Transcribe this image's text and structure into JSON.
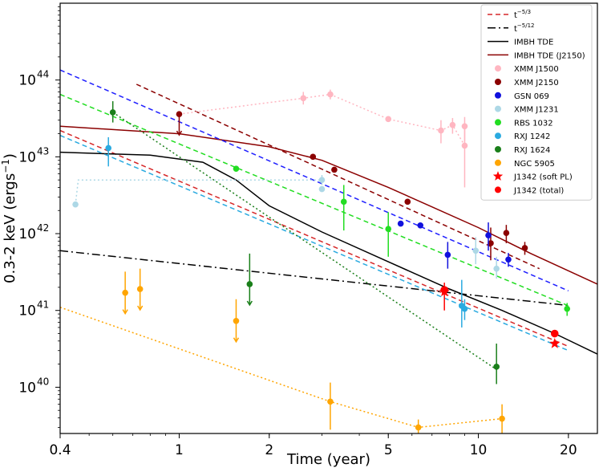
{
  "chart_data": {
    "type": "scatter",
    "xlabel": "Time (year)",
    "ylabel": "0.3-2 keV (ergs",
    "ylabel_sup": "−1",
    "ylabel_close": ")",
    "xscale": "log",
    "yscale": "log",
    "xlim": [
      0.4,
      25
    ],
    "ylim": [
      2.5e+39,
      1e+45
    ],
    "x_ticks": [
      {
        "v": 0.4,
        "label": "0.4"
      },
      {
        "v": 1,
        "label": "1"
      },
      {
        "v": 2,
        "label": "2"
      },
      {
        "v": 5,
        "label": "5"
      },
      {
        "v": 10,
        "label": "10"
      },
      {
        "v": 20,
        "label": "20"
      }
    ],
    "y_ticks": [
      {
        "v": 1e+40,
        "base": "10",
        "exp": "40"
      },
      {
        "v": 1e+41,
        "base": "10",
        "exp": "41"
      },
      {
        "v": 1e+42,
        "base": "10",
        "exp": "42"
      },
      {
        "v": 1e+43,
        "base": "10",
        "exp": "43"
      },
      {
        "v": 1e+44,
        "base": "10",
        "exp": "44"
      }
    ],
    "legend_position": "top-right",
    "lines": [
      {
        "name": "t",
        "sup": "−5/3",
        "color": "#d62728",
        "dash": "6,4",
        "points": [
          [
            0.4,
            2.2e+43
          ],
          [
            20,
            3.4e+40
          ]
        ]
      },
      {
        "name": "t",
        "sup": "−5/12",
        "color": "#000000",
        "dash": "10,4,2,4",
        "points": [
          [
            0.4,
            6e+41
          ],
          [
            20,
            1.16e+41
          ]
        ]
      },
      {
        "name": "IMBH TDE",
        "color": "#000000",
        "dash": "",
        "points": [
          [
            0.4,
            1.15e+43
          ],
          [
            0.8,
            1.05e+43
          ],
          [
            1.2,
            8.5e+42
          ],
          [
            1.55,
            5e+42
          ],
          [
            2,
            2.3e+42
          ],
          [
            3,
            1.05e+42
          ],
          [
            5,
            4.3e+41
          ],
          [
            8,
            1.9e+41
          ],
          [
            12,
            1e+41
          ],
          [
            18,
            5e+40
          ],
          [
            25,
            2.7e+40
          ]
        ]
      },
      {
        "name": "IMBH TDE (J2150)",
        "color": "#8b0000",
        "dash": "",
        "points": [
          [
            0.4,
            2.5e+43
          ],
          [
            1,
            2e+43
          ],
          [
            2,
            1.35e+43
          ],
          [
            3,
            9e+42
          ],
          [
            5,
            4e+42
          ],
          [
            10,
            1.2e+42
          ],
          [
            15,
            5.5e+41
          ],
          [
            25,
            2.2e+41
          ]
        ]
      },
      {
        "name": "",
        "color": "#8b0000",
        "dash": "6,4",
        "points": [
          [
            0.72,
            8.8e+43
          ],
          [
            16,
            3.5e+41
          ]
        ]
      },
      {
        "name": "",
        "color": "#1f1fff",
        "dash": "6,4",
        "points": [
          [
            0.4,
            1.35e+44
          ],
          [
            20,
            1.8e+41
          ]
        ]
      },
      {
        "name": "",
        "color": "#22dd22",
        "dash": "6,4",
        "points": [
          [
            0.4,
            6.5e+43
          ],
          [
            20,
            1.15e+41
          ]
        ]
      },
      {
        "name": "",
        "color": "#2aaae0",
        "dash": "6,4",
        "points": [
          [
            0.4,
            1.9e+43
          ],
          [
            20,
            3e+40
          ]
        ]
      },
      {
        "name": "",
        "color": "#1a7f1a",
        "dash": "2,3",
        "points": [
          [
            0.6,
            3.8e+43
          ],
          [
            11.5,
            1.7e+40
          ]
        ]
      },
      {
        "name": "",
        "color": "#ffb6c1",
        "dash": "2,3",
        "points": [
          [
            1,
            3.6e+43
          ],
          [
            2.6,
            5.8e+43
          ],
          [
            3.2,
            6.5e+43
          ],
          [
            5,
            3.1e+43
          ],
          [
            7.5,
            2.2e+43
          ],
          [
            8.2,
            2.6e+43
          ],
          [
            9,
            1.4e+43
          ]
        ]
      },
      {
        "name": "",
        "color": "#add8e6",
        "dash": "2,3",
        "points": [
          [
            0.45,
            2.4e+42
          ],
          [
            0.46,
            5e+42
          ],
          [
            3,
            5e+42
          ]
        ]
      },
      {
        "name": "",
        "color": "#ffa500",
        "dash": "2,3",
        "points": [
          [
            0.4,
            1.1e+41
          ],
          [
            3.2,
            6.5e+39
          ],
          [
            6.3,
            3e+39
          ],
          [
            12,
            3.9e+39
          ]
        ]
      }
    ],
    "series": [
      {
        "name": "XMM J1500",
        "color": "#ffb6c1",
        "marker": "circle",
        "points": [
          {
            "x": 2.6,
            "y": 5.8e+43,
            "lo": 4.8e+43,
            "hi": 7e+43
          },
          {
            "x": 3.2,
            "y": 6.5e+43,
            "lo": 5.6e+43,
            "hi": 7.5e+43
          },
          {
            "x": 5,
            "y": 3.1e+43
          },
          {
            "x": 7.5,
            "y": 2.2e+43,
            "lo": 1.5e+43,
            "hi": 3e+43
          },
          {
            "x": 8.2,
            "y": 2.6e+43,
            "lo": 2e+43,
            "hi": 3.2e+43
          },
          {
            "x": 9,
            "y": 2.5e+43,
            "lo": 1.6e+43,
            "hi": 3.3e+43
          },
          {
            "x": 9,
            "y": 1.4e+43,
            "lo": 4e+42,
            "hi": 2.5e+43
          }
        ]
      },
      {
        "name": "XMM J2150",
        "color": "#8b0000",
        "marker": "circle",
        "points": [
          {
            "x": 1,
            "y": 3.6e+43,
            "upper_limit": true
          },
          {
            "x": 2.8,
            "y": 1e+43
          },
          {
            "x": 3.3,
            "y": 6.8e+42
          },
          {
            "x": 5.8,
            "y": 2.6e+42
          },
          {
            "x": 11,
            "y": 7.5e+41,
            "lo": 4.5e+41,
            "hi": 1.2e+42
          },
          {
            "x": 12.4,
            "y": 1.02e+42,
            "lo": 7.5e+41,
            "hi": 1.3e+42
          },
          {
            "x": 14.3,
            "y": 6.5e+41,
            "lo": 5.3e+41,
            "hi": 7.8e+41
          }
        ]
      },
      {
        "name": "GSN 069",
        "color": "#1111dd",
        "marker": "circle",
        "points": [
          {
            "x": 5.5,
            "y": 1.35e+42
          },
          {
            "x": 6.4,
            "y": 1.28e+42
          },
          {
            "x": 7.9,
            "y": 5.3e+41,
            "lo": 3.5e+41,
            "hi": 7.8e+41
          },
          {
            "x": 10.8,
            "y": 9.5e+41,
            "lo": 6e+41,
            "hi": 1.4e+42
          },
          {
            "x": 12.6,
            "y": 4.6e+41,
            "lo": 3.7e+41,
            "hi": 5.6e+41
          }
        ]
      },
      {
        "name": "XMM J1231",
        "color": "#add8e6",
        "marker": "circle",
        "points": [
          {
            "x": 0.45,
            "y": 2.4e+42
          },
          {
            "x": 3,
            "y": 5e+42,
            "lo": 4.3e+42,
            "hi": 5.8e+42
          },
          {
            "x": 3,
            "y": 3.8e+42
          },
          {
            "x": 9.8,
            "y": 6e+41,
            "lo": 4e+41,
            "hi": 9e+41
          },
          {
            "x": 11.5,
            "y": 3.5e+41,
            "lo": 2.6e+41,
            "hi": 5e+41
          }
        ]
      },
      {
        "name": "RBS 1032",
        "color": "#22dd22",
        "marker": "circle",
        "points": [
          {
            "x": 1.55,
            "y": 7e+42
          },
          {
            "x": 3.55,
            "y": 2.6e+42,
            "lo": 1.1e+42,
            "hi": 4.3e+42
          },
          {
            "x": 5,
            "y": 1.15e+42,
            "lo": 5e+41,
            "hi": 1.9e+42
          },
          {
            "x": 19.8,
            "y": 1.05e+41,
            "lo": 8.5e+40,
            "hi": 1.25e+41
          }
        ]
      },
      {
        "name": "RXJ 1242",
        "color": "#2aaae0",
        "marker": "circle",
        "points": [
          {
            "x": 0.58,
            "y": 1.3e+43,
            "lo": 7.5e+42,
            "hi": 1.8e+43
          },
          {
            "x": 8.8,
            "y": 1.15e+41,
            "lo": 6e+40,
            "hi": 2.5e+41
          },
          {
            "x": 9,
            "y": 1.05e+41,
            "lo": 7.5e+40,
            "hi": 1.4e+41
          }
        ]
      },
      {
        "name": "RXJ 1624",
        "color": "#1a7f1a",
        "marker": "circle",
        "points": [
          {
            "x": 0.6,
            "y": 3.8e+43,
            "lo": 2.8e+43,
            "hi": 5.3e+43
          },
          {
            "x": 1.72,
            "y": 2.2e+41,
            "upper_limit": true,
            "hi": 5.5e+41
          },
          {
            "x": 11.5,
            "y": 1.85e+40,
            "lo": 1.1e+40,
            "hi": 3.7e+40
          }
        ]
      },
      {
        "name": "NGC 5905",
        "color": "#ffa500",
        "marker": "circle",
        "points": [
          {
            "x": 0.66,
            "y": 1.7e+41,
            "upper_limit": true,
            "hi": 3.2e+41
          },
          {
            "x": 0.74,
            "y": 1.9e+41,
            "upper_limit": true,
            "hi": 3.5e+41
          },
          {
            "x": 1.55,
            "y": 7.3e+40,
            "upper_limit": true,
            "hi": 1.4e+41
          },
          {
            "x": 3.2,
            "y": 6.5e+39,
            "lo": 2.8e+39,
            "hi": 1.15e+40
          },
          {
            "x": 6.3,
            "y": 3e+39,
            "lo": 2e+39,
            "hi": 3.8e+39
          },
          {
            "x": 12,
            "y": 3.9e+39,
            "lo": 1.9e+39,
            "hi": 6e+39
          }
        ]
      },
      {
        "name": "J1342 (soft PL)",
        "color": "#ff0000",
        "marker": "star",
        "points": [
          {
            "x": 7.7,
            "y": 1.75e+41,
            "lo": 1e+41,
            "hi": 2.3e+41
          },
          {
            "x": 18,
            "y": 3.7e+40
          }
        ]
      },
      {
        "name": "J1342 (total)",
        "color": "#ff0000",
        "marker": "circle",
        "points": [
          {
            "x": 7.7,
            "y": 1.85e+41
          },
          {
            "x": 18,
            "y": 5e+40
          }
        ]
      }
    ],
    "legend": [
      {
        "label": "t",
        "sup": "−5/3",
        "kind": "line",
        "color": "#d62728",
        "dash": "6,4"
      },
      {
        "label": "t",
        "sup": "−5/12",
        "kind": "line",
        "color": "#000000",
        "dash": "10,4,2,4"
      },
      {
        "label": "IMBH TDE",
        "kind": "line",
        "color": "#000000",
        "dash": ""
      },
      {
        "label": "IMBH TDE (J2150)",
        "kind": "line",
        "color": "#8b0000",
        "dash": ""
      },
      {
        "label": "XMM J1500",
        "kind": "circle",
        "color": "#ffb6c1"
      },
      {
        "label": "XMM J2150",
        "kind": "circle",
        "color": "#8b0000"
      },
      {
        "label": "GSN 069",
        "kind": "circle",
        "color": "#1111dd"
      },
      {
        "label": "XMM J1231",
        "kind": "circle",
        "color": "#add8e6"
      },
      {
        "label": "RBS 1032",
        "kind": "circle",
        "color": "#22dd22"
      },
      {
        "label": "RXJ 1242",
        "kind": "circle",
        "color": "#2aaae0"
      },
      {
        "label": "RXJ 1624",
        "kind": "circle",
        "color": "#1a7f1a"
      },
      {
        "label": "NGC 5905",
        "kind": "circle",
        "color": "#ffa500"
      },
      {
        "label": "J1342 (soft PL)",
        "kind": "star",
        "color": "#ff0000"
      },
      {
        "label": "J1342 (total)",
        "kind": "circle",
        "color": "#ff0000"
      }
    ]
  }
}
